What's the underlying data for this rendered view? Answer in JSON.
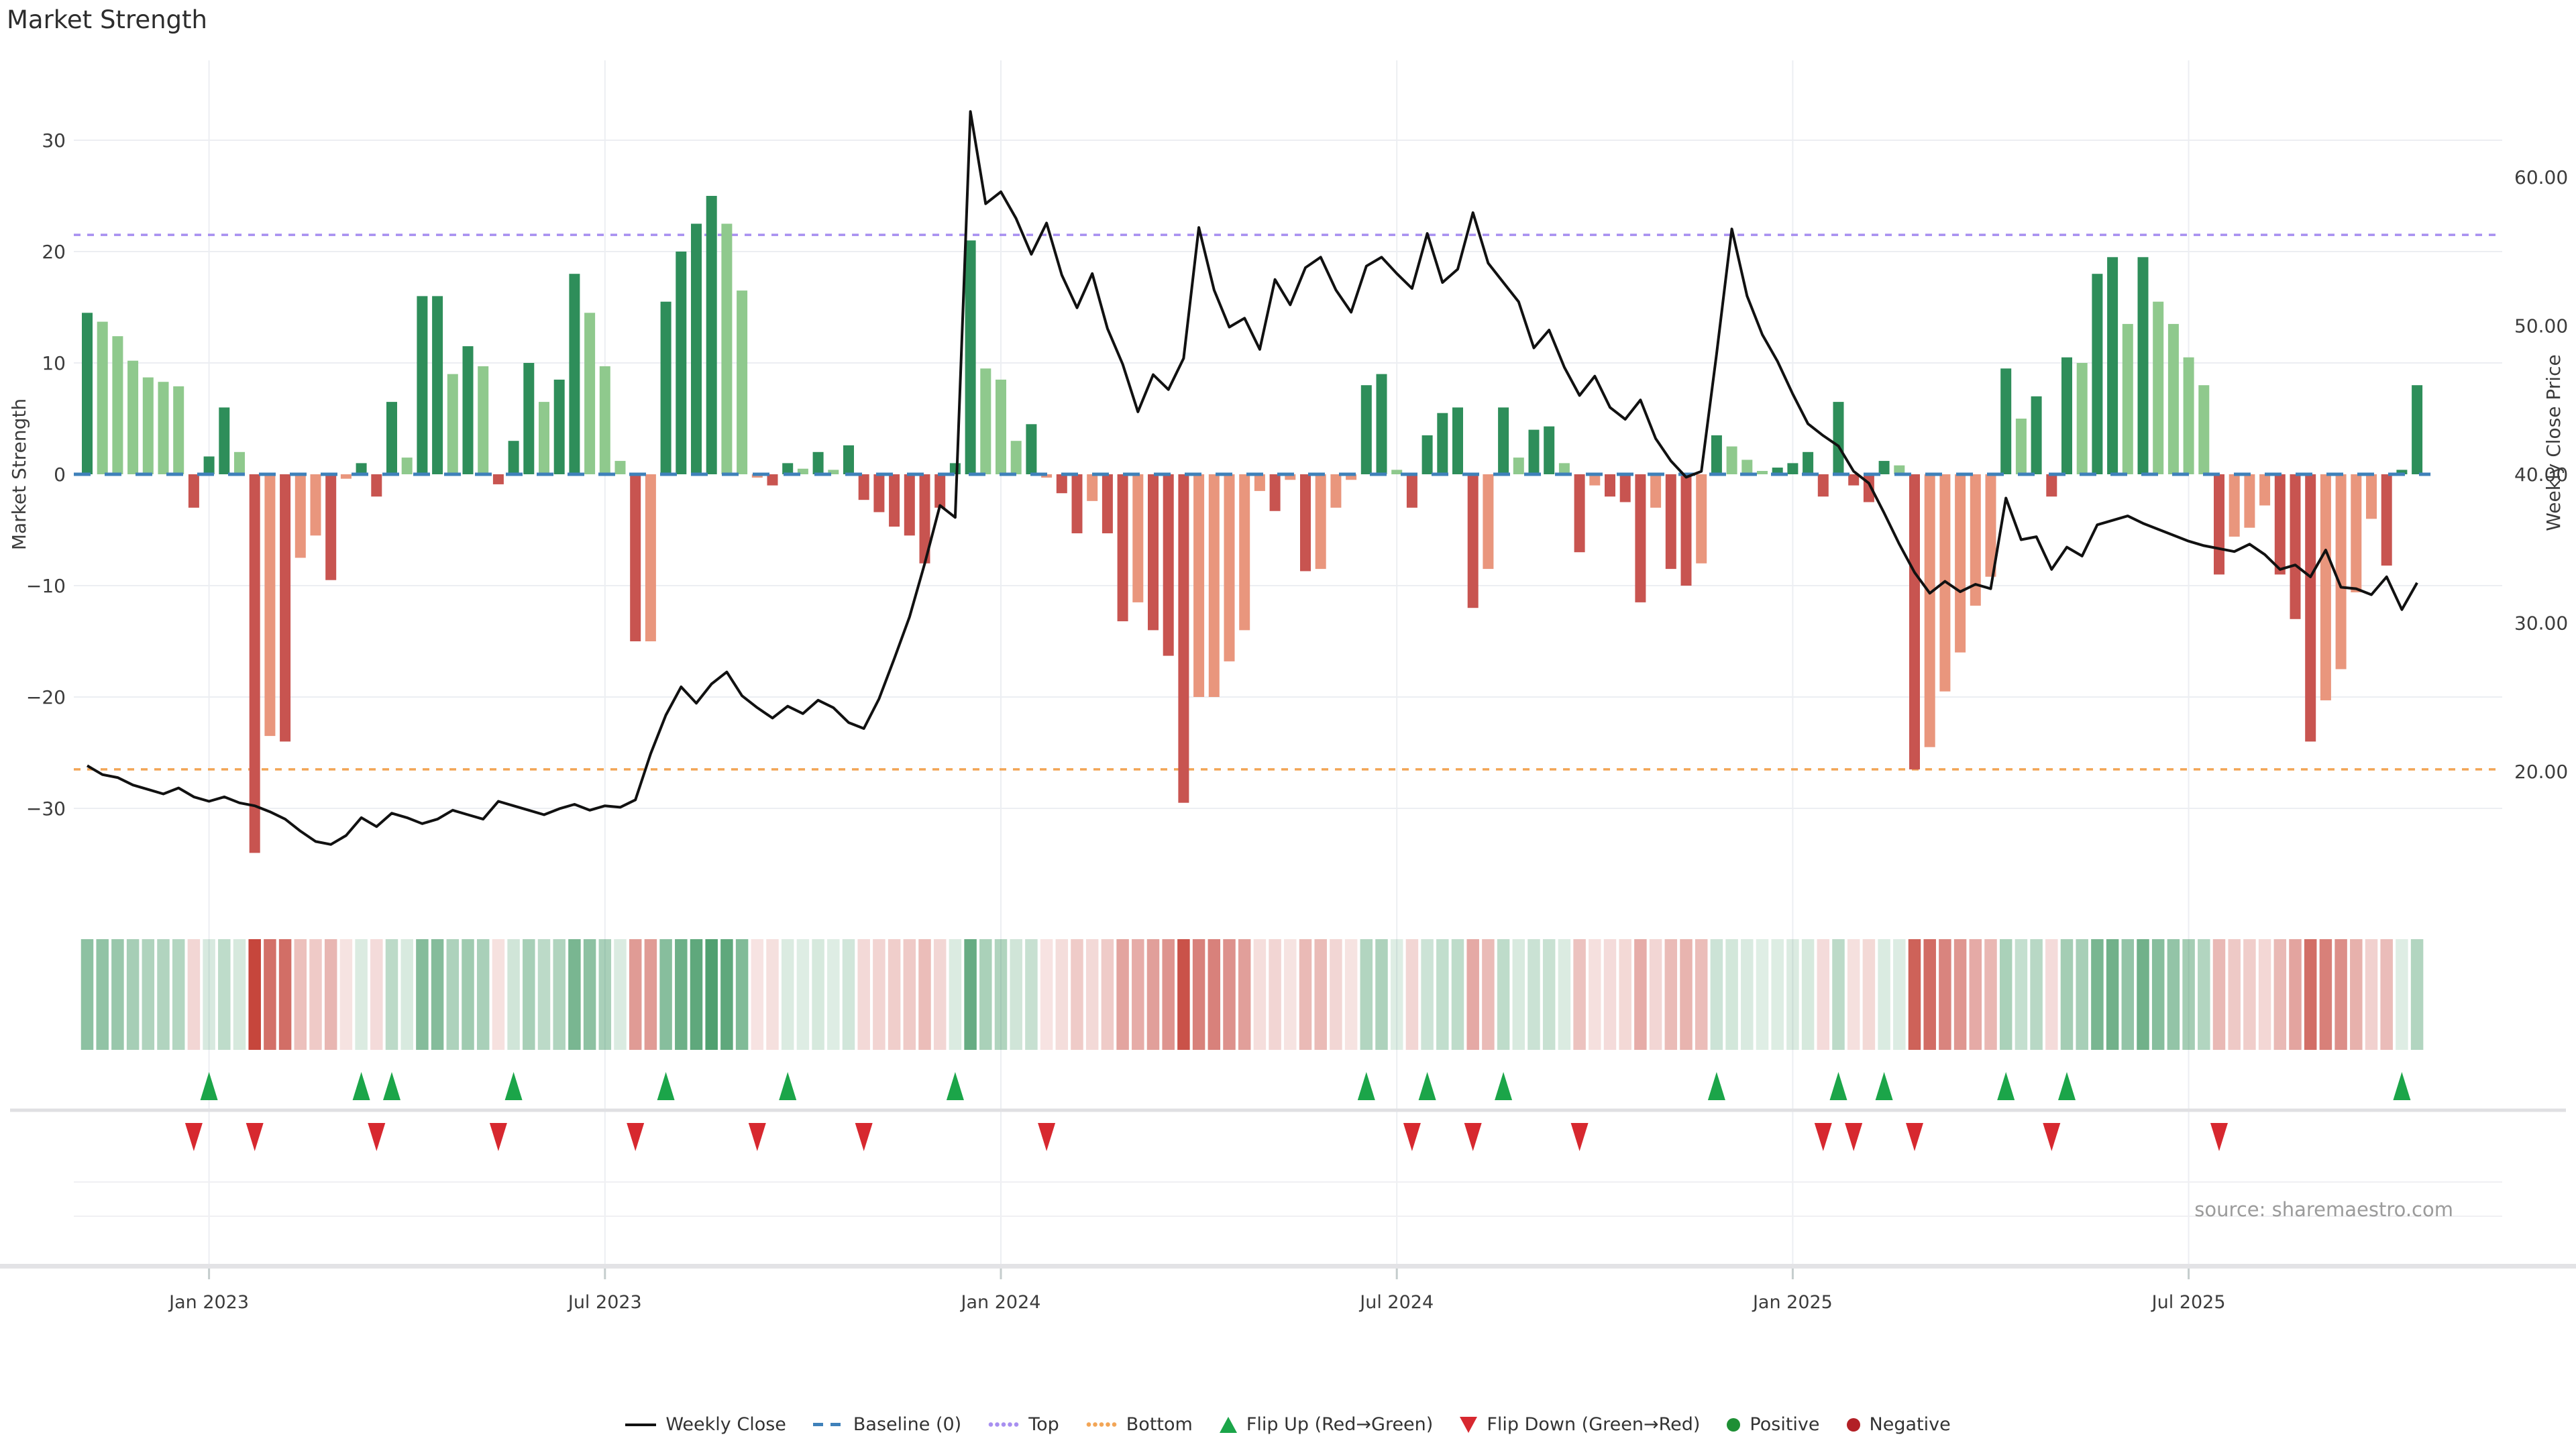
{
  "title": "Market Strength",
  "source_label": "source: sharemaestro.com",
  "axes": {
    "left_title": "Market Strength",
    "right_title": "Weekly Close Price",
    "left_ticks": [
      30,
      20,
      10,
      0,
      -10,
      -20,
      -30
    ],
    "right_ticks": [
      60,
      50,
      40,
      30,
      20
    ],
    "x_ticks": [
      "Jan 2023",
      "Jul 2023",
      "Jan 2024",
      "Jul 2024",
      "Jan 2025",
      "Jul 2025"
    ],
    "x_tick_weeks": [
      8,
      34,
      60,
      86,
      112,
      138
    ]
  },
  "legend": [
    {
      "label": "Weekly Close",
      "type": "line",
      "color": "#111111"
    },
    {
      "label": "Baseline (0)",
      "type": "dashes",
      "color": "#3f81ba"
    },
    {
      "label": "Top",
      "type": "dots",
      "color": "#a78ff0"
    },
    {
      "label": "Bottom",
      "type": "dots",
      "color": "#f2a556"
    },
    {
      "label": "Flip Up (Red→Green)",
      "type": "triangle-up",
      "color": "#1ba549"
    },
    {
      "label": "Flip Down (Green→Red)",
      "type": "triangle-down",
      "color": "#d7282f"
    },
    {
      "label": "Positive",
      "type": "dot",
      "color": "#1e8f35"
    },
    {
      "label": "Negative",
      "type": "dot",
      "color": "#b22026"
    }
  ],
  "colors": {
    "bar_dark_green": "#2e8e5a",
    "bar_light_green": "#8fc98d",
    "bar_dark_red": "#c85450",
    "bar_salmon": "#e9967d",
    "baseline_line": "#3f81ba",
    "top_line": "#a78ff0",
    "bottom_line": "#f2a556",
    "price_line": "#111111",
    "grid": "#eceef2",
    "heat_positive_base": "rgb(40,138,79)",
    "heat_negative_base": "rgb(198,70,60)"
  },
  "chart_data": {
    "type": "bar+line+heatmap",
    "x_unit": "week",
    "title": "Market Strength",
    "ylabel_left": "Market Strength",
    "ylabel_right": "Weekly Close Price",
    "baseline": 0,
    "top_threshold": 21.5,
    "bottom_threshold": -26.5,
    "left_range": [
      -37,
      37
    ],
    "right_range": [
      12.3,
      67.7
    ],
    "grid": true,
    "legend_position": "bottom-center",
    "strength": [
      14.5,
      13.7,
      12.4,
      10.2,
      8.7,
      8.3,
      7.9,
      -3.0,
      1.6,
      6.0,
      2.0,
      -34.0,
      -23.5,
      -24.0,
      -7.5,
      -5.5,
      -9.5,
      -0.4,
      1.0,
      -2.0,
      6.5,
      1.5,
      16.0,
      16.0,
      9.0,
      11.5,
      9.7,
      -0.9,
      3.0,
      10.0,
      6.5,
      8.5,
      18.0,
      14.5,
      9.7,
      1.2,
      -15.0,
      -15.0,
      15.5,
      20.0,
      22.5,
      25.0,
      22.5,
      16.5,
      -0.3,
      -1.0,
      1.0,
      0.5,
      2.0,
      0.4,
      2.6,
      -2.3,
      -3.4,
      -4.7,
      -5.5,
      -8.0,
      -3.0,
      1.0,
      21.0,
      9.5,
      8.5,
      3.0,
      4.5,
      -0.3,
      -1.7,
      -5.3,
      -2.4,
      -5.3,
      -13.2,
      -11.5,
      -14.0,
      -16.3,
      -29.5,
      -20.0,
      -20.0,
      -16.8,
      -14.0,
      -1.5,
      -3.3,
      -0.5,
      -8.7,
      -8.5,
      -3.0,
      -0.5,
      8.0,
      9.0,
      0.4,
      -3.0,
      3.5,
      5.5,
      6.0,
      -12.0,
      -8.5,
      6.0,
      1.5,
      4.0,
      4.3,
      1.0,
      -7.0,
      -1.0,
      -2.0,
      -2.5,
      -11.5,
      -3.0,
      -8.5,
      -10.0,
      -8.0,
      3.5,
      2.5,
      1.3,
      0.3,
      0.6,
      1.0,
      2.0,
      -2.0,
      6.5,
      -1.0,
      -2.5,
      1.2,
      0.8,
      -26.5,
      -24.5,
      -19.5,
      -16.0,
      -11.8,
      -9.2,
      9.5,
      5.0,
      7.0,
      -2.0,
      10.5,
      10.0,
      18.0,
      19.5,
      13.5,
      19.5,
      15.5,
      13.5,
      10.5,
      8.0,
      -9.0,
      -5.6,
      -4.8,
      -2.8,
      -9.0,
      -13.0,
      -24.0,
      -20.3,
      -17.5,
      -10.6,
      -4.0,
      -8.2,
      0.4,
      8.0
    ],
    "bar_colors": [
      "dg",
      "lg",
      "lg",
      "lg",
      "lg",
      "lg",
      "lg",
      "dr",
      "dg",
      "dg",
      "lg",
      "dr",
      "sa",
      "dr",
      "sa",
      "sa",
      "dr",
      "sa",
      "dg",
      "dr",
      "dg",
      "lg",
      "dg",
      "dg",
      "lg",
      "dg",
      "lg",
      "dr",
      "dg",
      "dg",
      "lg",
      "dg",
      "dg",
      "lg",
      "lg",
      "lg",
      "dr",
      "sa",
      "dg",
      "dg",
      "dg",
      "dg",
      "lg",
      "lg",
      "sa",
      "dr",
      "dg",
      "lg",
      "dg",
      "lg",
      "dg",
      "dr",
      "dr",
      "dr",
      "dr",
      "dr",
      "dr",
      "dg",
      "dg",
      "lg",
      "lg",
      "lg",
      "dg",
      "sa",
      "dr",
      "dr",
      "sa",
      "dr",
      "dr",
      "sa",
      "dr",
      "dr",
      "dr",
      "sa",
      "sa",
      "sa",
      "sa",
      "sa",
      "dr",
      "sa",
      "dr",
      "sa",
      "sa",
      "sa",
      "dg",
      "dg",
      "lg",
      "dr",
      "dg",
      "dg",
      "dg",
      "dr",
      "sa",
      "dg",
      "lg",
      "dg",
      "dg",
      "lg",
      "dr",
      "sa",
      "dr",
      "dr",
      "dr",
      "sa",
      "dr",
      "dr",
      "sa",
      "dg",
      "lg",
      "lg",
      "lg",
      "dg",
      "dg",
      "dg",
      "dr",
      "dg",
      "dr",
      "dr",
      "dg",
      "lg",
      "dr",
      "sa",
      "sa",
      "sa",
      "sa",
      "sa",
      "dg",
      "lg",
      "dg",
      "dr",
      "dg",
      "lg",
      "dg",
      "dg",
      "lg",
      "dg",
      "lg",
      "lg",
      "lg",
      "lg",
      "dr",
      "sa",
      "sa",
      "sa",
      "dr",
      "dr",
      "dr",
      "sa",
      "sa",
      "sa",
      "sa",
      "dr",
      "dg",
      "dg"
    ],
    "weekly_close": [
      20.4,
      19.8,
      19.6,
      19.1,
      18.8,
      18.5,
      18.9,
      18.3,
      18.0,
      18.3,
      17.9,
      17.7,
      17.3,
      16.8,
      16.0,
      15.3,
      15.1,
      15.7,
      16.9,
      16.3,
      17.2,
      16.9,
      16.5,
      16.8,
      17.4,
      17.1,
      16.8,
      18.0,
      17.7,
      17.4,
      17.1,
      17.5,
      17.8,
      17.4,
      17.7,
      17.6,
      18.1,
      21.2,
      23.8,
      25.7,
      24.6,
      25.9,
      26.7,
      25.1,
      24.3,
      23.6,
      24.4,
      23.9,
      24.8,
      24.3,
      23.3,
      22.9,
      24.9,
      27.6,
      30.4,
      34.0,
      37.9,
      37.1,
      64.4,
      58.2,
      59.0,
      57.2,
      54.8,
      56.9,
      53.4,
      51.2,
      53.5,
      49.8,
      47.4,
      44.2,
      46.7,
      45.7,
      47.8,
      56.6,
      52.4,
      49.9,
      50.5,
      48.4,
      53.1,
      51.4,
      53.9,
      54.6,
      52.4,
      50.9,
      54.0,
      54.6,
      53.5,
      52.5,
      56.2,
      52.9,
      53.8,
      57.6,
      54.2,
      52.9,
      51.6,
      48.5,
      49.7,
      47.2,
      45.3,
      46.6,
      44.5,
      43.7,
      45.0,
      42.4,
      40.9,
      39.8,
      40.2,
      48.1,
      56.5,
      52.0,
      49.4,
      47.6,
      45.4,
      43.4,
      42.6,
      41.9,
      40.2,
      39.4,
      37.4,
      35.3,
      33.4,
      32.0,
      32.8,
      32.1,
      32.6,
      32.3,
      38.4,
      35.6,
      35.8,
      33.6,
      35.1,
      34.5,
      36.6,
      36.9,
      37.2,
      36.7,
      36.3,
      35.9,
      35.5,
      35.2,
      35.0,
      34.8,
      35.3,
      34.6,
      33.6,
      33.9,
      33.1,
      34.9,
      32.4,
      32.3,
      31.9,
      33.1,
      30.9,
      32.7
    ],
    "flip_up_rule": "week i where strength[i] > 0 and strength[i-1] < 0",
    "flip_down_rule": "week i where strength[i] < 0 and strength[i-1] > 0"
  }
}
